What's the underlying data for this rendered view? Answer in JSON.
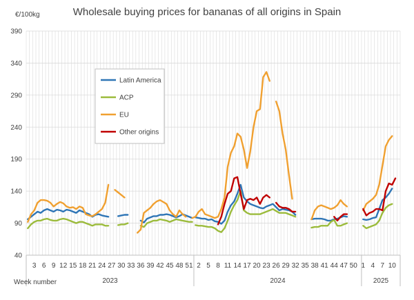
{
  "chart_data": {
    "type": "line",
    "title": "Wholesale buying prices for bananas of all origins in Spain",
    "unit": "€/100kg",
    "xlabel": "Week number",
    "ylim": [
      40,
      390
    ],
    "yticks": [
      40,
      90,
      140,
      190,
      240,
      290,
      340,
      390
    ],
    "grid": true,
    "legend_position": "left",
    "years": [
      {
        "label": "2023",
        "weeks": 52
      },
      {
        "label": "2024",
        "weeks": 52
      },
      {
        "label": "2025",
        "weeks": 12
      }
    ],
    "x_tick_labels": [
      {
        "i": 2,
        "label": "3"
      },
      {
        "i": 5,
        "label": "6"
      },
      {
        "i": 8,
        "label": "9"
      },
      {
        "i": 11,
        "label": "12"
      },
      {
        "i": 14,
        "label": "15"
      },
      {
        "i": 17,
        "label": "18"
      },
      {
        "i": 20,
        "label": "21"
      },
      {
        "i": 23,
        "label": "24"
      },
      {
        "i": 26,
        "label": "27"
      },
      {
        "i": 29,
        "label": "30"
      },
      {
        "i": 32,
        "label": "33"
      },
      {
        "i": 35,
        "label": "36"
      },
      {
        "i": 38,
        "label": "39"
      },
      {
        "i": 41,
        "label": "42"
      },
      {
        "i": 44,
        "label": "45"
      },
      {
        "i": 47,
        "label": "48"
      },
      {
        "i": 50,
        "label": "51"
      },
      {
        "i": 53,
        "label": "2"
      },
      {
        "i": 56,
        "label": "5"
      },
      {
        "i": 59,
        "label": "8"
      },
      {
        "i": 62,
        "label": "11"
      },
      {
        "i": 65,
        "label": "14"
      },
      {
        "i": 68,
        "label": "17"
      },
      {
        "i": 71,
        "label": "20"
      },
      {
        "i": 74,
        "label": "23"
      },
      {
        "i": 77,
        "label": "26"
      },
      {
        "i": 80,
        "label": "29"
      },
      {
        "i": 83,
        "label": "32"
      },
      {
        "i": 86,
        "label": "35"
      },
      {
        "i": 89,
        "label": "38"
      },
      {
        "i": 92,
        "label": "41"
      },
      {
        "i": 95,
        "label": "44"
      },
      {
        "i": 98,
        "label": "47"
      },
      {
        "i": 101,
        "label": "50"
      },
      {
        "i": 104,
        "label": "1"
      },
      {
        "i": 107,
        "label": "4"
      },
      {
        "i": 110,
        "label": "7"
      },
      {
        "i": 113,
        "label": "10"
      }
    ],
    "series": [
      {
        "name": "Latin America",
        "color": "#2e75b6",
        "values": [
          96,
          100,
          104,
          108,
          106,
          110,
          112,
          110,
          108,
          111,
          110,
          108,
          111,
          110,
          108,
          106,
          110,
          108,
          106,
          104,
          100,
          103,
          104,
          102,
          101,
          100,
          null,
          null,
          101,
          102,
          103,
          103,
          null,
          null,
          null,
          94,
          91,
          97,
          99,
          101,
          101,
          103,
          103,
          104,
          103,
          101,
          99,
          101,
          104,
          102,
          100,
          98,
          99,
          98,
          97,
          97,
          95,
          96,
          93,
          92,
          89,
          94,
          108,
          118,
          124,
          136,
          150,
          130,
          124,
          120,
          118,
          116,
          114,
          113,
          116,
          118,
          120,
          null,
          110,
          112,
          111,
          110,
          108,
          103,
          null,
          null,
          null,
          null,
          96,
          97,
          97,
          97,
          96,
          94,
          94,
          96,
          97,
          99,
          101,
          100,
          null,
          null,
          null,
          null,
          96,
          95,
          96,
          98,
          99,
          112,
          126,
          130,
          136,
          144
        ],
        "segments": [
          [
            0,
            25
          ],
          [
            28,
            31
          ],
          [
            35,
            51
          ],
          [
            52,
            83
          ],
          [
            88,
            99
          ],
          [
            104,
            115
          ]
        ]
      },
      {
        "name": "ACP",
        "color": "#9bbb3b",
        "values": [
          82,
          88,
          92,
          94,
          94,
          96,
          97,
          95,
          94,
          94,
          96,
          97,
          96,
          94,
          92,
          90,
          92,
          92,
          90,
          88,
          86,
          88,
          88,
          88,
          86,
          86,
          null,
          null,
          87,
          88,
          88,
          90,
          null,
          null,
          null,
          86,
          84,
          90,
          92,
          94,
          94,
          96,
          95,
          94,
          92,
          94,
          96,
          95,
          94,
          93,
          92,
          92,
          87,
          86,
          86,
          85,
          84,
          84,
          82,
          78,
          76,
          82,
          94,
          108,
          118,
          126,
          140,
          110,
          106,
          104,
          104,
          104,
          104,
          106,
          108,
          110,
          112,
          null,
          106,
          106,
          106,
          104,
          102,
          100,
          null,
          null,
          null,
          null,
          83,
          84,
          84,
          86,
          86,
          86,
          92,
          95,
          86,
          86,
          88,
          90,
          null,
          null,
          null,
          null,
          86,
          82,
          84,
          86,
          88,
          94,
          106,
          114,
          118,
          120
        ],
        "segments": [
          [
            0,
            25
          ],
          [
            28,
            31
          ],
          [
            35,
            51
          ],
          [
            52,
            83
          ],
          [
            88,
            99
          ],
          [
            104,
            115
          ]
        ]
      },
      {
        "name": "EU",
        "color": "#f0a030",
        "values": [
          92,
          104,
          110,
          122,
          126,
          126,
          125,
          122,
          116,
          120,
          123,
          121,
          116,
          114,
          115,
          112,
          116,
          114,
          104,
          102,
          101,
          104,
          108,
          112,
          122,
          150,
          null,
          142,
          138,
          134,
          130,
          null,
          null,
          null,
          75,
          80,
          106,
          110,
          114,
          120,
          124,
          126,
          123,
          120,
          110,
          104,
          100,
          110,
          104,
          100,
          null,
          98,
          100,
          108,
          112,
          104,
          102,
          100,
          98,
          100,
          112,
          130,
          178,
          200,
          210,
          230,
          225,
          205,
          176,
          202,
          240,
          265,
          268,
          318,
          326,
          312,
          null,
          280,
          265,
          230,
          205,
          165,
          128,
          null,
          null,
          null,
          null,
          null,
          96,
          110,
          116,
          118,
          116,
          114,
          112,
          114,
          118,
          126,
          120,
          116,
          null,
          null,
          null,
          null,
          110,
          120,
          124,
          128,
          134,
          150,
          180,
          210,
          220,
          226
        ],
        "segments": [
          [
            0,
            25
          ],
          [
            27,
            30
          ],
          [
            34,
            49
          ],
          [
            51,
            75
          ],
          [
            77,
            83
          ],
          [
            88,
            99
          ],
          [
            104,
            115
          ]
        ]
      },
      {
        "name": "Other origins",
        "color": "#c00000",
        "values": [
          null,
          null,
          null,
          null,
          null,
          null,
          null,
          null,
          null,
          null,
          null,
          null,
          null,
          null,
          null,
          null,
          null,
          null,
          null,
          null,
          null,
          null,
          null,
          null,
          null,
          null,
          null,
          null,
          null,
          null,
          null,
          null,
          null,
          null,
          null,
          null,
          null,
          null,
          null,
          null,
          null,
          null,
          null,
          null,
          null,
          null,
          null,
          null,
          null,
          null,
          null,
          null,
          null,
          null,
          null,
          null,
          null,
          null,
          null,
          88,
          100,
          120,
          136,
          140,
          160,
          162,
          136,
          112,
          126,
          128,
          126,
          130,
          120,
          130,
          134,
          130,
          null,
          122,
          116,
          114,
          114,
          112,
          108,
          108,
          null,
          null,
          null,
          null,
          null,
          null,
          null,
          null,
          null,
          null,
          null,
          100,
          94,
          100,
          104,
          104,
          null,
          null,
          null,
          null,
          112,
          102,
          106,
          108,
          112,
          112,
          110,
          140,
          152,
          150,
          160
        ],
        "segments": [
          [
            59,
            75
          ],
          [
            77,
            83
          ],
          [
            95,
            99
          ],
          [
            104,
            115
          ]
        ]
      }
    ]
  }
}
